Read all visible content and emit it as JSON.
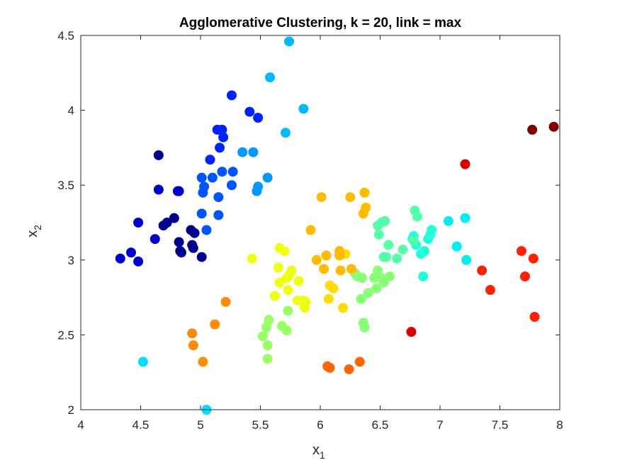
{
  "chart_data": {
    "type": "scatter",
    "title": "Agglomerative Clustering, k = 20, link = max",
    "xlabel": "x",
    "xlabel_sub": "1",
    "ylabel": "x",
    "ylabel_sub": "2",
    "xlim": [
      4,
      8
    ],
    "ylim": [
      2,
      4.5
    ],
    "xticks": [
      4,
      4.5,
      5,
      5.5,
      6,
      6.5,
      7,
      7.5,
      8
    ],
    "xtick_labels": [
      "4",
      "4.5",
      "5",
      "5.5",
      "6",
      "6.5",
      "7",
      "7.5",
      "8"
    ],
    "yticks": [
      2,
      2.5,
      3,
      3.5,
      4,
      4.5
    ],
    "ytick_labels": [
      "2",
      "2.5",
      "3",
      "3.5",
      "4",
      "4.5"
    ],
    "grid": false,
    "series": [
      {
        "color": "#00008F",
        "points": [
          [
            4.65,
            3.7
          ],
          [
            4.72,
            3.25
          ],
          [
            4.69,
            3.23
          ],
          [
            4.78,
            3.28
          ],
          [
            4.82,
            3.12
          ],
          [
            4.84,
            3.05
          ],
          [
            4.83,
            3.06
          ],
          [
            4.92,
            3.2
          ],
          [
            4.93,
            3.1
          ],
          [
            4.94,
            3.08
          ],
          [
            4.95,
            3.18
          ],
          [
            5.01,
            3.02
          ]
        ]
      },
      {
        "color": "#0000CD",
        "points": [
          [
            4.33,
            3.01
          ],
          [
            4.42,
            3.05
          ],
          [
            4.48,
            2.99
          ],
          [
            4.48,
            3.25
          ],
          [
            4.62,
            3.14
          ],
          [
            4.65,
            3.47
          ],
          [
            4.81,
            3.46
          ],
          [
            4.82,
            3.46
          ]
        ]
      },
      {
        "color": "#0022FF",
        "points": [
          [
            5.08,
            3.67
          ],
          [
            5.14,
            3.87
          ],
          [
            5.16,
            3.75
          ],
          [
            5.18,
            3.87
          ],
          [
            5.19,
            3.82
          ],
          [
            5.26,
            4.1
          ],
          [
            5.41,
            3.99
          ],
          [
            5.48,
            3.95
          ]
        ]
      },
      {
        "color": "#0055FF",
        "points": [
          [
            5.01,
            3.55
          ],
          [
            5.02,
            3.45
          ],
          [
            5.03,
            3.49
          ],
          [
            5.1,
            3.55
          ],
          [
            5.15,
            3.42
          ],
          [
            5.18,
            3.59
          ],
          [
            5.26,
            3.5
          ],
          [
            5.27,
            3.59
          ],
          [
            5.01,
            3.31
          ],
          [
            5.05,
            3.2
          ],
          [
            5.15,
            3.3
          ]
        ]
      },
      {
        "color": "#0099FF",
        "points": [
          [
            5.35,
            3.72
          ],
          [
            5.44,
            3.72
          ],
          [
            5.47,
            3.46
          ],
          [
            5.48,
            3.49
          ],
          [
            5.56,
            3.55
          ]
        ]
      },
      {
        "color": "#00BBFF",
        "points": [
          [
            5.58,
            4.22
          ],
          [
            5.71,
            3.85
          ],
          [
            5.74,
            4.46
          ],
          [
            5.86,
            4.01
          ]
        ]
      },
      {
        "color": "#00DDFF",
        "points": [
          [
            4.52,
            2.32
          ],
          [
            5.05,
            2.0
          ]
        ]
      },
      {
        "color": "#00EEEE",
        "points": [
          [
            7.21,
            3.28
          ],
          [
            7.22,
            3.0
          ],
          [
            7.14,
            3.09
          ],
          [
            7.07,
            3.26
          ]
        ]
      },
      {
        "color": "#22FFDD",
        "points": [
          [
            6.86,
            2.89
          ],
          [
            6.8,
            3.1
          ],
          [
            6.84,
            3.04
          ],
          [
            6.87,
            3.06
          ],
          [
            6.9,
            3.14
          ],
          [
            6.92,
            3.17
          ],
          [
            6.93,
            3.2
          ],
          [
            6.78,
            3.16
          ],
          [
            6.77,
            3.14
          ]
        ]
      },
      {
        "color": "#55FFAA",
        "points": [
          [
            6.48,
            3.23
          ],
          [
            6.51,
            3.25
          ],
          [
            6.54,
            3.26
          ],
          [
            6.49,
            3.17
          ],
          [
            6.57,
            3.1
          ],
          [
            6.53,
            3.02
          ],
          [
            6.55,
            3.02
          ],
          [
            6.64,
            3.01
          ],
          [
            6.69,
            3.07
          ],
          [
            6.79,
            3.33
          ],
          [
            6.81,
            3.29
          ],
          [
            6.78,
            3.13
          ]
        ]
      },
      {
        "color": "#88FF77",
        "points": [
          [
            6.29,
            2.91
          ],
          [
            6.31,
            2.89
          ],
          [
            6.35,
            2.88
          ],
          [
            6.34,
            2.74
          ],
          [
            6.36,
            2.58
          ],
          [
            6.37,
            2.55
          ],
          [
            6.4,
            2.78
          ],
          [
            6.45,
            2.88
          ],
          [
            6.47,
            2.81
          ],
          [
            6.48,
            2.93
          ],
          [
            6.51,
            2.88
          ],
          [
            6.53,
            2.85
          ],
          [
            6.58,
            2.89
          ]
        ]
      },
      {
        "color": "#99FF66",
        "points": [
          [
            5.52,
            2.49
          ],
          [
            5.55,
            2.55
          ],
          [
            5.57,
            2.6
          ],
          [
            5.56,
            2.43
          ],
          [
            5.56,
            2.34
          ],
          [
            5.68,
            2.56
          ],
          [
            5.72,
            2.53
          ],
          [
            5.73,
            2.66
          ]
        ]
      },
      {
        "color": "#EEFF11",
        "points": [
          [
            5.43,
            3.01
          ],
          [
            5.66,
            3.08
          ],
          [
            5.7,
            3.06
          ],
          [
            5.65,
            2.95
          ],
          [
            5.66,
            2.85
          ],
          [
            5.72,
            2.88
          ],
          [
            5.74,
            2.9
          ],
          [
            5.76,
            2.93
          ],
          [
            5.62,
            2.76
          ],
          [
            5.73,
            2.8
          ],
          [
            5.82,
            2.86
          ],
          [
            5.81,
            2.73
          ],
          [
            5.86,
            2.73
          ],
          [
            5.87,
            2.68
          ],
          [
            5.88,
            2.72
          ]
        ]
      },
      {
        "color": "#FFDD00",
        "points": [
          [
            6.21,
            3.04
          ],
          [
            6.08,
            2.83
          ],
          [
            6.11,
            2.81
          ],
          [
            6.19,
            2.68
          ],
          [
            6.07,
            2.74
          ]
        ]
      },
      {
        "color": "#FFBB00",
        "points": [
          [
            5.92,
            3.2
          ],
          [
            5.97,
            3.0
          ],
          [
            6.01,
            3.42
          ],
          [
            6.03,
            2.94
          ],
          [
            6.05,
            3.03
          ],
          [
            6.16,
            3.06
          ],
          [
            6.16,
            3.03
          ],
          [
            6.17,
            2.93
          ],
          [
            6.25,
            3.42
          ],
          [
            6.26,
            2.94
          ],
          [
            6.36,
            3.31
          ],
          [
            6.37,
            3.45
          ],
          [
            6.38,
            3.35
          ]
        ]
      },
      {
        "color": "#FF8C00",
        "points": [
          [
            4.93,
            2.51
          ],
          [
            4.94,
            2.43
          ],
          [
            5.02,
            2.32
          ],
          [
            5.12,
            2.57
          ],
          [
            5.21,
            2.72
          ]
        ]
      },
      {
        "color": "#FF6600",
        "points": [
          [
            6.06,
            2.29
          ],
          [
            6.08,
            2.28
          ],
          [
            6.24,
            2.27
          ],
          [
            6.33,
            2.32
          ]
        ]
      },
      {
        "color": "#FF2200",
        "points": [
          [
            7.35,
            2.93
          ],
          [
            7.42,
            2.8
          ],
          [
            7.68,
            3.06
          ],
          [
            7.71,
            2.89
          ],
          [
            7.78,
            3.01
          ],
          [
            7.79,
            2.62
          ]
        ]
      },
      {
        "color": "#DD0000",
        "points": [
          [
            6.76,
            2.52
          ],
          [
            7.21,
            3.64
          ]
        ]
      },
      {
        "color": "#800000",
        "points": [
          [
            7.77,
            3.87
          ],
          [
            7.95,
            3.89
          ]
        ]
      }
    ]
  }
}
